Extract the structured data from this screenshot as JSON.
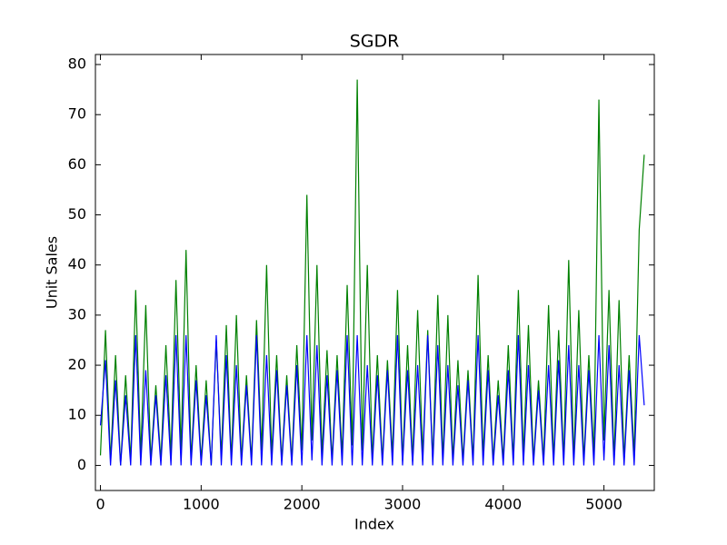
{
  "chart_data": {
    "type": "line",
    "title": "SGDR",
    "xlabel": "Index",
    "ylabel": "Unit Sales",
    "x": [
      0,
      50,
      100,
      150,
      200,
      250,
      300,
      350,
      400,
      450,
      500,
      550,
      600,
      650,
      700,
      750,
      800,
      850,
      900,
      950,
      1000,
      1050,
      1100,
      1150,
      1200,
      1250,
      1300,
      1350,
      1400,
      1450,
      1500,
      1550,
      1600,
      1650,
      1700,
      1750,
      1800,
      1850,
      1900,
      1950,
      2000,
      2050,
      2100,
      2150,
      2200,
      2250,
      2300,
      2350,
      2400,
      2450,
      2500,
      2550,
      2600,
      2650,
      2700,
      2750,
      2800,
      2850,
      2900,
      2950,
      3000,
      3050,
      3100,
      3150,
      3200,
      3250,
      3300,
      3350,
      3400,
      3450,
      3500,
      3550,
      3600,
      3650,
      3700,
      3750,
      3800,
      3850,
      3900,
      3950,
      4000,
      4050,
      4100,
      4150,
      4200,
      4250,
      4300,
      4350,
      4400,
      4450,
      4500,
      4550,
      4600,
      4650,
      4700,
      4750,
      4800,
      4850,
      4900,
      4950,
      5000,
      5050,
      5100,
      5150,
      5200,
      5250,
      5300,
      5350,
      5400
    ],
    "series": [
      {
        "color": "#008000",
        "values": [
          2,
          27,
          1,
          22,
          0,
          18,
          1,
          35,
          2,
          32,
          1,
          16,
          1,
          24,
          2,
          37,
          3,
          43,
          1,
          20,
          1,
          17,
          0,
          25,
          2,
          28,
          1,
          30,
          1,
          18,
          1,
          29,
          3,
          40,
          2,
          22,
          1,
          18,
          1,
          24,
          3,
          54,
          5,
          40,
          2,
          23,
          1,
          22,
          2,
          36,
          4,
          77,
          3,
          40,
          1,
          22,
          1,
          21,
          2,
          35,
          1,
          24,
          1,
          31,
          2,
          27,
          1,
          34,
          1,
          30,
          1,
          21,
          1,
          19,
          1,
          38,
          2,
          22,
          1,
          17,
          1,
          24,
          1,
          35,
          2,
          28,
          1,
          17,
          1,
          32,
          1,
          27,
          1,
          41,
          1,
          31,
          1,
          22,
          2,
          73,
          5,
          35,
          1,
          33,
          1,
          22,
          2,
          47,
          62
        ]
      },
      {
        "color": "#0000ff",
        "values": [
          8,
          21,
          0,
          17,
          0,
          14,
          0,
          26,
          0,
          19,
          0,
          14,
          0,
          18,
          0,
          26,
          0,
          26,
          0,
          17,
          0,
          14,
          0,
          26,
          0,
          22,
          0,
          20,
          0,
          16,
          0,
          26,
          0,
          22,
          0,
          19,
          0,
          16,
          0,
          20,
          0,
          26,
          1,
          24,
          0,
          18,
          0,
          19,
          0,
          26,
          0,
          26,
          0,
          20,
          0,
          18,
          0,
          19,
          0,
          26,
          0,
          19,
          0,
          20,
          0,
          26,
          0,
          24,
          0,
          20,
          0,
          16,
          0,
          17,
          0,
          26,
          0,
          19,
          0,
          14,
          0,
          19,
          0,
          26,
          0,
          20,
          0,
          15,
          0,
          20,
          0,
          21,
          0,
          24,
          0,
          20,
          0,
          19,
          0,
          26,
          1,
          24,
          0,
          20,
          0,
          19,
          0,
          26,
          12
        ]
      }
    ],
    "xlim": [
      -50,
      5500
    ],
    "ylim": [
      -5,
      82
    ],
    "xticks": [
      0,
      1000,
      2000,
      3000,
      4000,
      5000
    ],
    "yticks": [
      0,
      10,
      20,
      30,
      40,
      50,
      60,
      70,
      80
    ]
  }
}
